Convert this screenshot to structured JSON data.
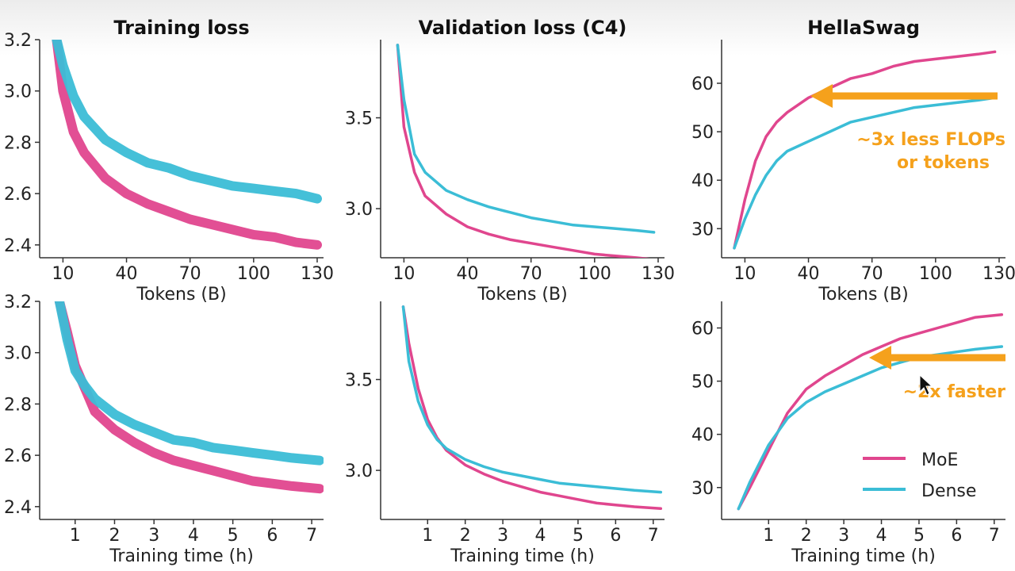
{
  "colors": {
    "moe": "#e0468e",
    "dense": "#3bbdd6",
    "arrow": "#f5a11c"
  },
  "panel_titles": [
    "Training loss",
    "Validation loss (C4)",
    "HellaSwag"
  ],
  "legend": [
    {
      "label": "MoE",
      "color": "#e0468e"
    },
    {
      "label": "Dense",
      "color": "#3bbdd6"
    }
  ],
  "annotations": {
    "tokens": [
      "~3x less FLOPs",
      "or tokens"
    ],
    "time": [
      "~2x faster"
    ]
  },
  "chart_data": [
    {
      "type": "line",
      "title": "Training loss",
      "xlabel": "Tokens (B)",
      "ylabel": "",
      "xlim": [
        -1,
        133
      ],
      "ylim": [
        2.35,
        3.2
      ],
      "xticks": [
        10,
        40,
        70,
        100,
        130
      ],
      "yticks": [
        2.4,
        2.6,
        2.8,
        3.0,
        3.2
      ],
      "x": [
        7,
        10,
        15,
        20,
        30,
        40,
        50,
        60,
        70,
        80,
        90,
        100,
        110,
        120,
        130
      ],
      "series": [
        {
          "name": "MoE",
          "values": [
            3.2,
            3.0,
            2.84,
            2.76,
            2.66,
            2.6,
            2.56,
            2.53,
            2.5,
            2.48,
            2.46,
            2.44,
            2.43,
            2.41,
            2.4
          ]
        },
        {
          "name": "Dense",
          "values": [
            3.2,
            3.1,
            2.98,
            2.9,
            2.81,
            2.76,
            2.72,
            2.7,
            2.67,
            2.65,
            2.63,
            2.62,
            2.61,
            2.6,
            2.58
          ]
        }
      ]
    },
    {
      "type": "line",
      "title": "Validation loss (C4)",
      "xlabel": "Tokens (B)",
      "ylabel": "",
      "xlim": [
        -1,
        133
      ],
      "ylim": [
        2.73,
        3.93
      ],
      "xticks": [
        10,
        40,
        70,
        100,
        130
      ],
      "yticks": [
        3.0,
        3.5
      ],
      "x": [
        7,
        10,
        15,
        20,
        30,
        40,
        50,
        60,
        70,
        80,
        90,
        100,
        110,
        120,
        128
      ],
      "series": [
        {
          "name": "MoE",
          "values": [
            3.9,
            3.45,
            3.2,
            3.07,
            2.97,
            2.9,
            2.86,
            2.83,
            2.81,
            2.79,
            2.77,
            2.75,
            2.74,
            2.73,
            2.72
          ]
        },
        {
          "name": "Dense",
          "values": [
            3.9,
            3.6,
            3.3,
            3.2,
            3.1,
            3.05,
            3.01,
            2.98,
            2.95,
            2.93,
            2.91,
            2.9,
            2.89,
            2.88,
            2.87
          ]
        }
      ]
    },
    {
      "type": "line",
      "title": "HellaSwag",
      "xlabel": "Tokens (B)",
      "ylabel": "",
      "xlim": [
        -1,
        133
      ],
      "ylim": [
        24,
        69
      ],
      "xticks": [
        10,
        40,
        70,
        100,
        130
      ],
      "yticks": [
        30,
        40,
        50,
        60
      ],
      "x": [
        5,
        10,
        15,
        20,
        25,
        30,
        40,
        50,
        60,
        70,
        80,
        90,
        100,
        110,
        120,
        128
      ],
      "series": [
        {
          "name": "MoE",
          "values": [
            26,
            36,
            44,
            49,
            52,
            54,
            57,
            59,
            61,
            62,
            63.5,
            64.5,
            65,
            65.5,
            66,
            66.5
          ]
        },
        {
          "name": "Dense",
          "values": [
            26,
            32,
            37,
            41,
            44,
            46,
            48,
            50,
            52,
            53,
            54,
            55,
            55.5,
            56,
            56.5,
            57
          ]
        }
      ]
    },
    {
      "type": "line",
      "title": "",
      "xlabel": "Training time (h)",
      "ylabel": "",
      "xlim": [
        0.1,
        7.3
      ],
      "ylim": [
        2.35,
        3.2
      ],
      "xticks": [
        1,
        2,
        3,
        4,
        5,
        6,
        7
      ],
      "yticks": [
        2.4,
        2.6,
        2.8,
        3.0,
        3.2
      ],
      "x": [
        0.6,
        0.8,
        1.0,
        1.25,
        1.5,
        2.0,
        2.5,
        3.0,
        3.5,
        4.0,
        4.5,
        5.0,
        5.5,
        6.0,
        6.5,
        7.2
      ],
      "series": [
        {
          "name": "MoE",
          "values": [
            3.2,
            3.08,
            2.95,
            2.86,
            2.77,
            2.7,
            2.65,
            2.61,
            2.58,
            2.56,
            2.54,
            2.52,
            2.5,
            2.49,
            2.48,
            2.47
          ]
        },
        {
          "name": "Dense",
          "values": [
            3.2,
            3.05,
            2.93,
            2.87,
            2.82,
            2.76,
            2.72,
            2.69,
            2.66,
            2.65,
            2.63,
            2.62,
            2.61,
            2.6,
            2.59,
            2.58
          ]
        }
      ]
    },
    {
      "type": "line",
      "title": "",
      "xlabel": "Training time (h)",
      "ylabel": "",
      "xlim": [
        -0.25,
        7.3
      ],
      "ylim": [
        2.73,
        3.93
      ],
      "xticks": [
        1,
        2,
        3,
        4,
        5,
        6,
        7
      ],
      "yticks": [
        3.0,
        3.5
      ],
      "x": [
        0.35,
        0.5,
        0.75,
        1.0,
        1.25,
        1.5,
        2.0,
        2.5,
        3.0,
        3.5,
        4.0,
        4.5,
        5.0,
        5.5,
        6.0,
        6.5,
        7.2
      ],
      "series": [
        {
          "name": "MoE",
          "values": [
            3.9,
            3.7,
            3.45,
            3.28,
            3.18,
            3.11,
            3.03,
            2.98,
            2.94,
            2.91,
            2.88,
            2.86,
            2.84,
            2.82,
            2.81,
            2.8,
            2.79
          ]
        },
        {
          "name": "Dense",
          "values": [
            3.9,
            3.6,
            3.38,
            3.25,
            3.17,
            3.12,
            3.06,
            3.02,
            2.99,
            2.97,
            2.95,
            2.93,
            2.92,
            2.91,
            2.9,
            2.89,
            2.88
          ]
        }
      ]
    },
    {
      "type": "line",
      "title": "",
      "xlabel": "Training time (h)",
      "ylabel": "",
      "xlim": [
        -0.25,
        7.3
      ],
      "ylim": [
        24,
        65
      ],
      "xticks": [
        1,
        2,
        3,
        4,
        5,
        6,
        7
      ],
      "yticks": [
        30,
        40,
        50,
        60
      ],
      "x": [
        0.2,
        0.5,
        1.0,
        1.5,
        2.0,
        2.5,
        3.0,
        3.5,
        4.0,
        4.5,
        5.0,
        5.5,
        6.0,
        6.5,
        7.2
      ],
      "series": [
        {
          "name": "MoE",
          "values": [
            26,
            30,
            37,
            44,
            48.5,
            51,
            53,
            55,
            56.5,
            58,
            59,
            60,
            61,
            62,
            62.5
          ]
        },
        {
          "name": "Dense",
          "values": [
            26,
            31,
            38,
            43,
            46,
            48,
            49.5,
            51,
            52.5,
            53.5,
            54.5,
            55,
            55.5,
            56,
            56.5
          ]
        }
      ]
    }
  ]
}
